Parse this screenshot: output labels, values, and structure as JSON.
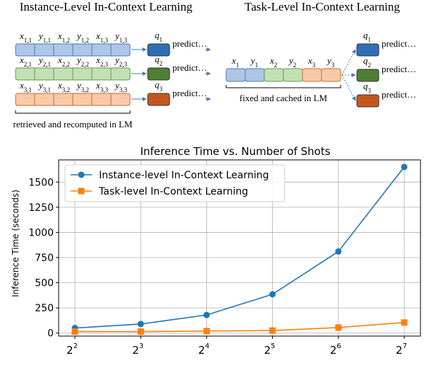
{
  "diagram": {
    "instance": {
      "title": "Instance-Level In-Context Learning",
      "rows": [
        {
          "x1": "x",
          "s1": "1,1",
          "y1": "y",
          "t1": "1,1",
          "x2": "x",
          "s2": "1,2",
          "y2": "y",
          "t2": "1,2",
          "x3": "x",
          "s3": "1,3",
          "y3": "y",
          "t3": "1,3",
          "q": "q",
          "qs": "1",
          "predict": "predict…"
        },
        {
          "x1": "x",
          "s1": "2,1",
          "y1": "y",
          "t1": "2,1",
          "x2": "x",
          "s2": "2,2",
          "y2": "y",
          "t2": "2,2",
          "x3": "x",
          "s3": "2,3",
          "y3": "y",
          "t3": "2,3",
          "q": "q",
          "qs": "2",
          "predict": "predict…"
        },
        {
          "x1": "x",
          "s1": "3,1",
          "y1": "y",
          "t1": "3,1",
          "x2": "x",
          "s2": "3,2",
          "y2": "y",
          "t2": "3,2",
          "x3": "x",
          "s3": "3,3",
          "y3": "y",
          "t3": "3,3",
          "q": "q",
          "qs": "3",
          "predict": "predict…"
        }
      ],
      "caption": "retrieved and recomputed in LM"
    },
    "task": {
      "title": "Task-Level In-Context Learning",
      "tokens": [
        {
          "v": "x",
          "s": "1"
        },
        {
          "v": "y",
          "s": "1"
        },
        {
          "v": "x",
          "s": "2"
        },
        {
          "v": "y",
          "s": "2"
        },
        {
          "v": "x",
          "s": "3"
        },
        {
          "v": "y",
          "s": "3"
        }
      ],
      "queries": [
        {
          "q": "q",
          "qs": "1",
          "predict": "predict…"
        },
        {
          "q": "q",
          "qs": "2",
          "predict": "predict…"
        },
        {
          "q": "q",
          "qs": "3",
          "predict": "predict…"
        }
      ],
      "caption": "fixed and cached in LM"
    },
    "colors": {
      "blue_fill": "#aec6e6",
      "blue_stroke": "#4a78b5",
      "green_fill": "#c3e0b4",
      "green_stroke": "#5f9a4e",
      "orange_fill": "#f9c9a8",
      "orange_stroke": "#c96a34",
      "q1": "#2e6fb5",
      "q2": "#4f7f35",
      "q3": "#c5571c"
    }
  },
  "chart_data": {
    "type": "line",
    "title": "Inference Time vs. Number of Shots",
    "ylabel": "Inference Time (seconds)",
    "xlabel": "",
    "x": [
      4,
      8,
      16,
      32,
      64,
      128
    ],
    "x_ticks": [
      {
        "base": "2",
        "exp": "2"
      },
      {
        "base": "2",
        "exp": "3"
      },
      {
        "base": "2",
        "exp": "4"
      },
      {
        "base": "2",
        "exp": "5"
      },
      {
        "base": "2",
        "exp": "6"
      },
      {
        "base": "2",
        "exp": "7"
      }
    ],
    "xscale": "log2",
    "ylim": [
      -30,
      1720
    ],
    "y_ticks": [
      0,
      250,
      500,
      750,
      1000,
      1250,
      1500
    ],
    "grid": true,
    "legend_position": "top-left",
    "series": [
      {
        "name": "Instance-level In-Context Learning",
        "marker": "circle",
        "color": "#1f77b4",
        "values": [
          50,
          90,
          180,
          385,
          810,
          1650
        ]
      },
      {
        "name": "Task-level In-Context Learning",
        "marker": "square",
        "color": "#ff7f0e",
        "values": [
          15,
          15,
          20,
          25,
          55,
          105
        ]
      }
    ]
  }
}
